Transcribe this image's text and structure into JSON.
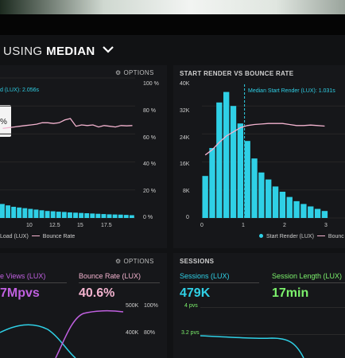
{
  "dashboard": {
    "title_prefix": "USING",
    "title_main": "MEDIAN"
  },
  "left_panel": {
    "options_label": "OPTIONS",
    "median_label": "d (LUX): 2.056s",
    "tooltip_text": "%",
    "right_axis_ticks": [
      "100 %",
      "80 %",
      "60 %",
      "40 %",
      "20 %",
      "0 %"
    ],
    "x_ticks": [
      "10",
      "12.5",
      "15",
      "17.5"
    ],
    "legend_a": "Load (LUX)",
    "legend_b": "Bounce Rate"
  },
  "right_panel": {
    "title": "START RENDER VS BOUNCE RATE",
    "median_label": "Median Start Render (LUX): 1.031s",
    "left_axis_ticks": [
      "40K",
      "32K",
      "24K",
      "16K",
      "8K",
      "0"
    ],
    "x_ticks": [
      "0",
      "1",
      "2",
      "3"
    ],
    "legend_a": "Start Render (LUX)",
    "legend_b": "Bounc"
  },
  "bottom_left": {
    "options_label": "OPTIONS",
    "page_views_label": "e Views (LUX)",
    "page_views_value": "7Mpvs",
    "bounce_label": "Bounce Rate (LUX)",
    "bounce_value": "40.6%",
    "axis_a": [
      "500K",
      "400K"
    ],
    "axis_b": [
      "100%",
      "80%"
    ]
  },
  "sessions": {
    "title": "SESSIONS",
    "sessions_label": "Sessions (LUX)",
    "sessions_value": "479K",
    "sessions_sub1": "4 pvs",
    "sessions_sub2": "3.2 pvs",
    "length_label": "Session Length (LUX)",
    "length_value": "17min"
  },
  "colors": {
    "cyan": "#2fd0e6",
    "pink": "#f3b3cf",
    "green": "#7cf26c",
    "purple": "#c060e0"
  },
  "chart_data": [
    {
      "type": "bar",
      "title": "START RENDER VS BOUNCE RATE",
      "xlabel": "",
      "ylabel": "",
      "x_ticks": [
        0,
        1,
        2,
        3
      ],
      "ylim": [
        0,
        40000
      ],
      "series": [
        {
          "name": "Start Render (LUX)",
          "values": [
            12000,
            20000,
            33000,
            36000,
            32000,
            27000,
            22000,
            17000,
            13000,
            11000,
            9000,
            7500,
            6000,
            4800,
            4000,
            3300,
            2600,
            2000
          ],
          "x_start": 0.08,
          "x_step": 0.17
        }
      ],
      "median_start_render": 1.031,
      "bounce_rate_line": [
        60,
        65,
        72,
        78,
        82,
        86,
        88,
        89,
        89.5,
        90,
        90,
        90,
        89,
        88,
        88,
        88.5,
        88,
        87.5
      ]
    },
    {
      "type": "bar",
      "title": "",
      "x_ticks": [
        10,
        12.5,
        15,
        17.5
      ],
      "right_ylim_percent": [
        0,
        100
      ],
      "series": [
        {
          "name": "Load (LUX)",
          "values": [
            10,
            9,
            8,
            7.5,
            7,
            6.5,
            6,
            5.5,
            5,
            4.8,
            4.5,
            4.3,
            4,
            3.8,
            3.6,
            3.4,
            3.2,
            3,
            2.8,
            2.6,
            2.5,
            2.4,
            2.2,
            2
          ]
        },
        {
          "name": "Bounce Rate",
          "values": [
            64,
            64.5,
            65,
            65.5,
            66,
            66.5,
            67,
            68,
            68,
            67.5,
            68,
            70,
            71,
            65.5,
            66.5,
            66,
            66.5,
            65,
            66,
            65.5,
            65,
            66,
            65.8,
            66
          ]
        }
      ]
    }
  ]
}
